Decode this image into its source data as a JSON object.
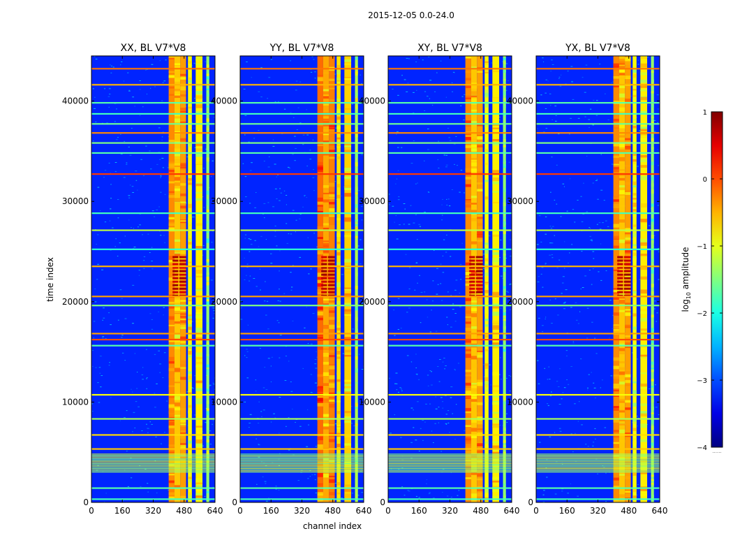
{
  "figure_title": "2015-12-05 0.0-24.0",
  "colors": {
    "background": "#ffffff",
    "axis": "#000000",
    "colormap": "jet"
  },
  "chart_data": {
    "type": "heatmap",
    "title": "2015-12-05 0.0-24.0",
    "xlabel": "channel index",
    "ylabel": "time index",
    "xlim": [
      0,
      640
    ],
    "ylim": [
      0,
      44500
    ],
    "xticks": [
      0,
      160,
      320,
      480,
      640
    ],
    "xtick_labels": [
      "0",
      "160",
      "320",
      "480",
      "640"
    ],
    "yticks": [
      0,
      10000,
      20000,
      30000,
      40000
    ],
    "ytick_labels": [
      "0",
      "10000",
      "20000",
      "30000",
      "40000"
    ],
    "panels": [
      {
        "title": "XX, BL V7*V8",
        "key": "xx"
      },
      {
        "title": "YY, BL V7*V8",
        "key": "yy"
      },
      {
        "title": "XY, BL V7*V8",
        "key": "xy"
      },
      {
        "title": "YX, BL V7*V8",
        "key": "yx"
      }
    ],
    "colorbar": {
      "label": "log10 amplitude",
      "label_prefix": "log",
      "label_sub": "10",
      "label_suffix": " amplitude",
      "range": [
        -4,
        1
      ],
      "ticks": [
        1,
        0,
        -1,
        -2,
        -3,
        -4
      ],
      "tick_labels": [
        "1",
        "0",
        "−1",
        "−2",
        "−3",
        "−4"
      ],
      "footer": "......"
    },
    "features": {
      "background_level": -3.2,
      "rfi_channel_bands": [
        [
          400,
          430,
          -0.3
        ],
        [
          430,
          460,
          -0.6
        ],
        [
          460,
          490,
          -0.4
        ],
        [
          500,
          520,
          -0.9
        ],
        [
          540,
          575,
          -0.8
        ],
        [
          595,
          610,
          -1.4
        ]
      ],
      "horizontal_lines": [
        {
          "t": 43300,
          "level": -0.2
        },
        {
          "t": 41700,
          "level": -0.5
        },
        {
          "t": 39900,
          "level": -1.7
        },
        {
          "t": 38800,
          "level": -1.8
        },
        {
          "t": 37800,
          "level": -1.6
        },
        {
          "t": 36900,
          "level": -0.3
        },
        {
          "t": 35900,
          "level": -1.5
        },
        {
          "t": 34900,
          "level": -1.7
        },
        {
          "t": 32800,
          "level": 0.1
        },
        {
          "t": 28900,
          "level": -1.8
        },
        {
          "t": 27200,
          "level": -1.2
        },
        {
          "t": 25300,
          "level": -1.9
        },
        {
          "t": 23600,
          "level": -0.5
        },
        {
          "t": 20600,
          "level": -0.4
        },
        {
          "t": 19700,
          "level": -1.5
        },
        {
          "t": 16900,
          "level": -0.4
        },
        {
          "t": 16300,
          "level": 0.0
        },
        {
          "t": 15700,
          "level": -1.7
        },
        {
          "t": 10800,
          "level": -0.9
        },
        {
          "t": 8400,
          "level": -1.3
        },
        {
          "t": 6800,
          "level": -0.7
        },
        {
          "t": 5400,
          "level": -0.6
        },
        {
          "t": 1500,
          "level": -1.7
        },
        {
          "t": 400,
          "level": -1.8
        }
      ],
      "dense_band": [
        3000,
        4900
      ],
      "burst_window": [
        20500,
        24500
      ]
    }
  }
}
